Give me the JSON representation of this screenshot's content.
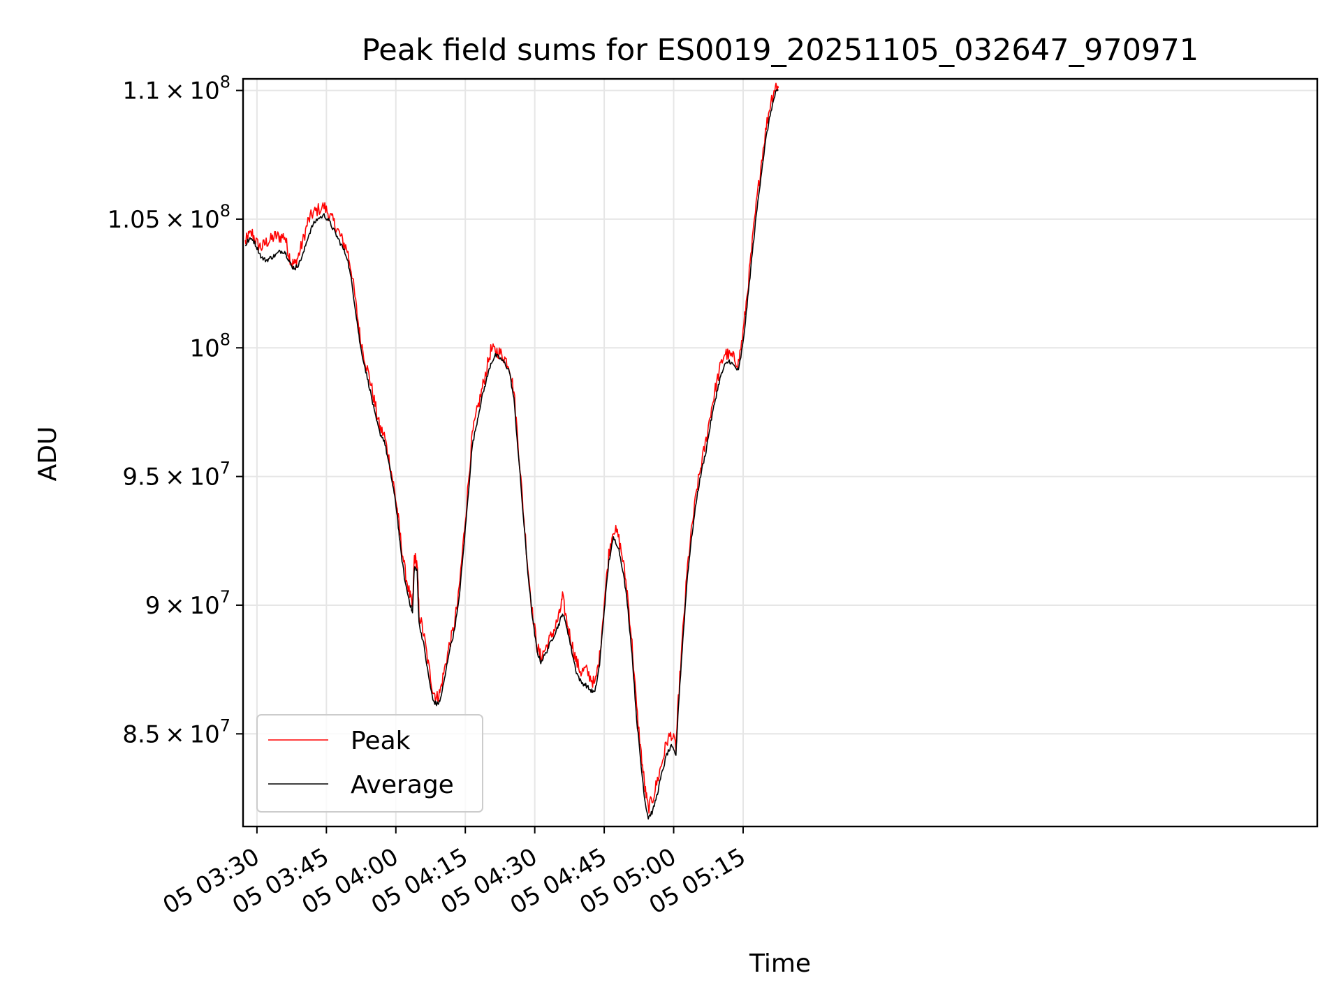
{
  "chart_data": {
    "type": "line",
    "title": "Peak field sums for ES0019_20251105_032647_970971",
    "xlabel": "Time",
    "ylabel": "ADU",
    "grid": true,
    "legend_position": "lower-left",
    "xlim": [
      207,
      439
    ],
    "ylim": [
      81400000,
      110450000
    ],
    "x_unit": "minutes since 05 00:00",
    "x_ticks": [
      {
        "value": 210,
        "label": "05 03:30"
      },
      {
        "value": 225,
        "label": "05 03:45"
      },
      {
        "value": 240,
        "label": "05 04:00"
      },
      {
        "value": 255,
        "label": "05 04:15"
      },
      {
        "value": 270,
        "label": "05 04:30"
      },
      {
        "value": 285,
        "label": "05 04:45"
      },
      {
        "value": 300,
        "label": "05 05:00"
      },
      {
        "value": 315,
        "label": "05 05:15"
      }
    ],
    "y_ticks": [
      {
        "value": 85000000,
        "mantissa": "8.5",
        "exp": "7"
      },
      {
        "value": 90000000,
        "mantissa": "9",
        "exp": "7"
      },
      {
        "value": 95000000,
        "mantissa": "9.5",
        "exp": "7"
      },
      {
        "value": 100000000,
        "mantissa": "",
        "exp": "8"
      },
      {
        "value": 105000000,
        "mantissa": "1.05",
        "exp": "8"
      },
      {
        "value": 110000000,
        "mantissa": "1.1",
        "exp": "8"
      }
    ],
    "series": [
      {
        "name": "Average",
        "color": "#000000",
        "points": [
          [
            207.5,
            103950000
          ],
          [
            208,
            104150000
          ],
          [
            209,
            104250000
          ],
          [
            210,
            103900000
          ],
          [
            211,
            103500000
          ],
          [
            212,
            103400000
          ],
          [
            213,
            103500000
          ],
          [
            214,
            103600000
          ],
          [
            215,
            103750000
          ],
          [
            216,
            103750000
          ],
          [
            216.8,
            103450000
          ],
          [
            217.5,
            103150000
          ],
          [
            218.3,
            103100000
          ],
          [
            219,
            103250000
          ],
          [
            220,
            103650000
          ],
          [
            221,
            104300000
          ],
          [
            222,
            104750000
          ],
          [
            223,
            105000000
          ],
          [
            224.5,
            105150000
          ],
          [
            225.5,
            104950000
          ],
          [
            226.5,
            104600000
          ],
          [
            227.5,
            104250000
          ],
          [
            228.5,
            103900000
          ],
          [
            229.5,
            103500000
          ],
          [
            230.5,
            102500000
          ],
          [
            231.5,
            101200000
          ],
          [
            232.3,
            100100000
          ],
          [
            233.5,
            99100000
          ],
          [
            234.5,
            98300000
          ],
          [
            235.5,
            97400000
          ],
          [
            236.5,
            96700000
          ],
          [
            237.5,
            96400000
          ],
          [
            238.5,
            95500000
          ],
          [
            239.5,
            94500000
          ],
          [
            240.3,
            93500000
          ],
          [
            241,
            92200000
          ],
          [
            242,
            90900000
          ],
          [
            243,
            90100000
          ],
          [
            243.6,
            89700000
          ],
          [
            244,
            91500000
          ],
          [
            244.6,
            91300000
          ],
          [
            245,
            89300000
          ],
          [
            246,
            88500000
          ],
          [
            247,
            87300000
          ],
          [
            248,
            86300000
          ],
          [
            248.8,
            86150000
          ],
          [
            249.5,
            86250000
          ],
          [
            250.5,
            87100000
          ],
          [
            251.5,
            88200000
          ],
          [
            252.5,
            88900000
          ],
          [
            253.5,
            90000000
          ],
          [
            254.5,
            91900000
          ],
          [
            255.5,
            94000000
          ],
          [
            256.5,
            96200000
          ],
          [
            257.5,
            97100000
          ],
          [
            258.5,
            98000000
          ],
          [
            259.5,
            98700000
          ],
          [
            260.5,
            99400000
          ],
          [
            261.5,
            99700000
          ],
          [
            262.5,
            99600000
          ],
          [
            263.5,
            99400000
          ],
          [
            264.5,
            99100000
          ],
          [
            265.5,
            98000000
          ],
          [
            266.5,
            95800000
          ],
          [
            267.5,
            93500000
          ],
          [
            268.5,
            91300000
          ],
          [
            269.5,
            89500000
          ],
          [
            270.5,
            88200000
          ],
          [
            271.3,
            87800000
          ],
          [
            272.3,
            88100000
          ],
          [
            273.3,
            88500000
          ],
          [
            274.3,
            88900000
          ],
          [
            275.3,
            89300000
          ],
          [
            276,
            89700000
          ],
          [
            277,
            89100000
          ],
          [
            278,
            88200000
          ],
          [
            279,
            87400000
          ],
          [
            280,
            87000000
          ],
          [
            281,
            86900000
          ],
          [
            282,
            86700000
          ],
          [
            283,
            86600000
          ],
          [
            284,
            87700000
          ],
          [
            285,
            89800000
          ],
          [
            286,
            91700000
          ],
          [
            287,
            92600000
          ],
          [
            288,
            92300000
          ],
          [
            289,
            91400000
          ],
          [
            290,
            90100000
          ],
          [
            291,
            88100000
          ],
          [
            292,
            85600000
          ],
          [
            293,
            83700000
          ],
          [
            293.8,
            82400000
          ],
          [
            294.5,
            81750000
          ],
          [
            295.5,
            82000000
          ],
          [
            296.5,
            82700000
          ],
          [
            297.5,
            83500000
          ],
          [
            298.5,
            84200000
          ],
          [
            299.5,
            84500000
          ],
          [
            300.5,
            84200000
          ],
          [
            301,
            86000000
          ],
          [
            302,
            88700000
          ],
          [
            303,
            91200000
          ],
          [
            304,
            92800000
          ],
          [
            305,
            94200000
          ],
          [
            306,
            95200000
          ],
          [
            307,
            96000000
          ],
          [
            308,
            97100000
          ],
          [
            309,
            98000000
          ],
          [
            310,
            98800000
          ],
          [
            311,
            99300000
          ],
          [
            312,
            99500000
          ],
          [
            313,
            99300000
          ],
          [
            314,
            99100000
          ],
          [
            315,
            100200000
          ],
          [
            316,
            101900000
          ],
          [
            317,
            103700000
          ],
          [
            318,
            105400000
          ],
          [
            319,
            106900000
          ],
          [
            320,
            108200000
          ],
          [
            321,
            109200000
          ],
          [
            322,
            109900000
          ],
          [
            322.6,
            110000000
          ]
        ]
      },
      {
        "name": "Peak",
        "color": "#ff0000",
        "points": [
          [
            207.5,
            104100000
          ],
          [
            208,
            104300000
          ],
          [
            209,
            104450000
          ],
          [
            210,
            104050000
          ],
          [
            211,
            103900000
          ],
          [
            212,
            104100000
          ],
          [
            213,
            104200000
          ],
          [
            214,
            104350000
          ],
          [
            215,
            104300000
          ],
          [
            216,
            104350000
          ],
          [
            216.8,
            103700000
          ],
          [
            217.5,
            103300000
          ],
          [
            218.3,
            103250000
          ],
          [
            219,
            103600000
          ],
          [
            220,
            104200000
          ],
          [
            221,
            104900000
          ],
          [
            222,
            105200000
          ],
          [
            223,
            105350000
          ],
          [
            224.5,
            105500000
          ],
          [
            225.5,
            105200000
          ],
          [
            226.5,
            104900000
          ],
          [
            227.5,
            104550000
          ],
          [
            228.5,
            104150000
          ],
          [
            229.5,
            103800000
          ],
          [
            230.5,
            102900000
          ],
          [
            231.5,
            101500000
          ],
          [
            232.3,
            100400000
          ],
          [
            233.5,
            99400000
          ],
          [
            234.5,
            98700000
          ],
          [
            235.5,
            97800000
          ],
          [
            236.5,
            96900000
          ],
          [
            237.5,
            96600000
          ],
          [
            238.5,
            95700000
          ],
          [
            239.5,
            94700000
          ],
          [
            240.3,
            93700000
          ],
          [
            241,
            92600000
          ],
          [
            242,
            91300000
          ],
          [
            243,
            90400000
          ],
          [
            243.6,
            89900000
          ],
          [
            244,
            91900000
          ],
          [
            244.6,
            91600000
          ],
          [
            245,
            89700000
          ],
          [
            246,
            88900000
          ],
          [
            247,
            87700000
          ],
          [
            248,
            86700000
          ],
          [
            248.8,
            86400000
          ],
          [
            249.5,
            86600000
          ],
          [
            250.5,
            87500000
          ],
          [
            251.5,
            88400000
          ],
          [
            252.5,
            89100000
          ],
          [
            253.5,
            90300000
          ],
          [
            254.5,
            92300000
          ],
          [
            255.5,
            94400000
          ],
          [
            256.5,
            96600000
          ],
          [
            257.5,
            97500000
          ],
          [
            258.5,
            98300000
          ],
          [
            259.5,
            99100000
          ],
          [
            260.5,
            99900000
          ],
          [
            261.5,
            99900000
          ],
          [
            262.5,
            99800000
          ],
          [
            263.5,
            99600000
          ],
          [
            264.5,
            99300000
          ],
          [
            265.5,
            98300000
          ],
          [
            266.5,
            96100000
          ],
          [
            267.5,
            93700000
          ],
          [
            268.5,
            91500000
          ],
          [
            269.5,
            89700000
          ],
          [
            270.5,
            88400000
          ],
          [
            271.3,
            88000000
          ],
          [
            272.3,
            88300000
          ],
          [
            273.3,
            88700000
          ],
          [
            274.3,
            89100000
          ],
          [
            275.3,
            89600000
          ],
          [
            276,
            90300000
          ],
          [
            277,
            89300000
          ],
          [
            278,
            88500000
          ],
          [
            279,
            87800000
          ],
          [
            280,
            87400000
          ],
          [
            281,
            87500000
          ],
          [
            282,
            87200000
          ],
          [
            283,
            86900000
          ],
          [
            284,
            88000000
          ],
          [
            285,
            90100000
          ],
          [
            286,
            92000000
          ],
          [
            287,
            93000000
          ],
          [
            288,
            92700000
          ],
          [
            289,
            91800000
          ],
          [
            290,
            90500000
          ],
          [
            291,
            88500000
          ],
          [
            292,
            86000000
          ],
          [
            293,
            84200000
          ],
          [
            293.8,
            82900000
          ],
          [
            294.5,
            82100000
          ],
          [
            295.5,
            82500000
          ],
          [
            296.5,
            83200000
          ],
          [
            297.5,
            83900000
          ],
          [
            298.5,
            84700000
          ],
          [
            299.5,
            85000000
          ],
          [
            300.5,
            84500000
          ],
          [
            301,
            86300000
          ],
          [
            302,
            89000000
          ],
          [
            303,
            91500000
          ],
          [
            304,
            93100000
          ],
          [
            305,
            94500000
          ],
          [
            306,
            95500000
          ],
          [
            307,
            96400000
          ],
          [
            308,
            97500000
          ],
          [
            309,
            98400000
          ],
          [
            310,
            99200000
          ],
          [
            311,
            99800000
          ],
          [
            312,
            99700000
          ],
          [
            313,
            99600000
          ],
          [
            314,
            99400000
          ],
          [
            315,
            100600000
          ],
          [
            316,
            102300000
          ],
          [
            317,
            104100000
          ],
          [
            318,
            105800000
          ],
          [
            319,
            107300000
          ],
          [
            320,
            108600000
          ],
          [
            321,
            109600000
          ],
          [
            322,
            110200000
          ],
          [
            322.6,
            110100000
          ]
        ]
      }
    ]
  }
}
